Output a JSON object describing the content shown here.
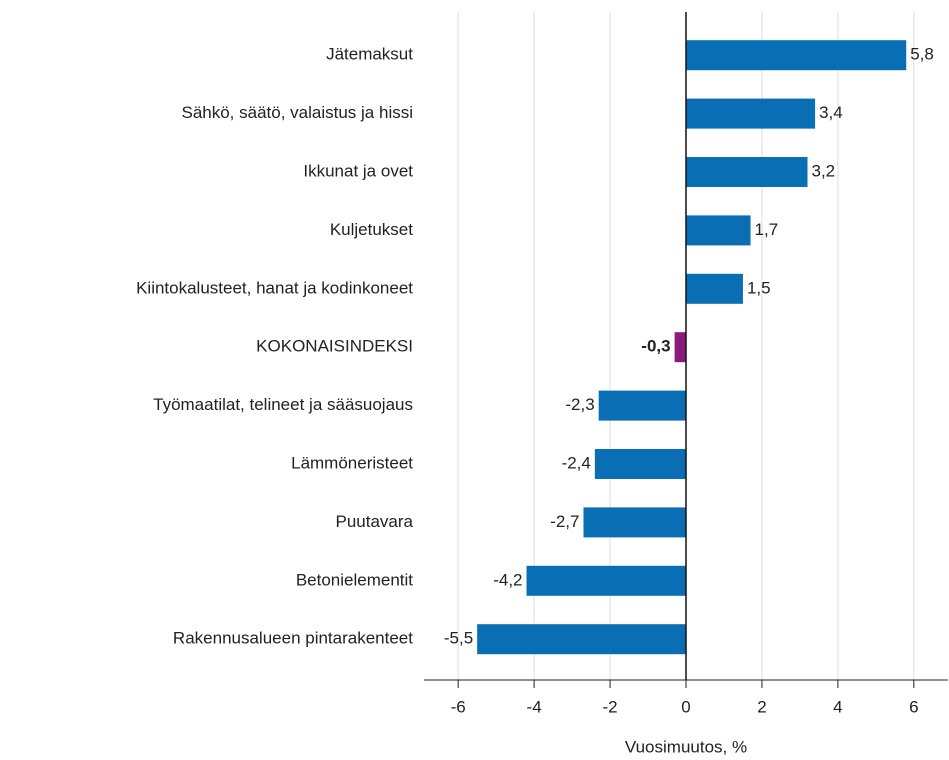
{
  "chart_data": {
    "type": "bar",
    "orientation": "horizontal",
    "categories": [
      "Jätemaksut",
      "Sähkö, säätö, valaistus ja hissi",
      "Ikkunat ja ovet",
      "Kuljetukset",
      "Kiintokalusteet, hanat ja kodinkoneet",
      "KOKONAISINDEKSI",
      "Työmaatilat, telineet ja sääsuojaus",
      "Lämmöneristeet",
      "Puutavara",
      "Betonielementit",
      "Rakennusalueen pintarakenteet"
    ],
    "values": [
      5.8,
      3.4,
      3.2,
      1.7,
      1.5,
      -0.3,
      -2.3,
      -2.4,
      -2.7,
      -4.2,
      -5.5
    ],
    "value_labels": [
      "5,8",
      "3,4",
      "3,2",
      "1,7",
      "1,5",
      "-0,3",
      "-2,3",
      "-2,4",
      "-2,7",
      "-4,2",
      "-5,5"
    ],
    "colors": [
      "#0a6eb4",
      "#0a6eb4",
      "#0a6eb4",
      "#0a6eb4",
      "#0a6eb4",
      "#8b1a7e",
      "#0a6eb4",
      "#0a6eb4",
      "#0a6eb4",
      "#0a6eb4",
      "#0a6eb4"
    ],
    "xlim": [
      -6.9,
      6.9
    ],
    "xticks": [
      -6,
      -4,
      -2,
      0,
      2,
      4,
      6
    ],
    "xlabel": "Vuosimuutos, %",
    "grid": true
  }
}
